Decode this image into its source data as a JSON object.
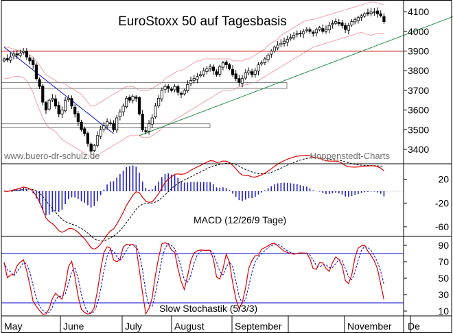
{
  "chart_data": {
    "type": "candlestick",
    "title": "EuroStoxx 50 auf Tagesbasis",
    "source_left": "www.buero-dr-schulz.de",
    "source_right": "Hoppenstedt-Charts",
    "colors": {
      "candle": "#000000",
      "bollinger": "#f0a0a8",
      "resistance": "#cc0000",
      "uptrend": "#1a8a40",
      "downtrend": "#1010cc",
      "support_box": "#808080",
      "macd_line": "#dd0000",
      "signal_line": "#000000",
      "histogram": "#2020c0",
      "stoch_k": "#dd0000",
      "stoch_d": "#0000cc",
      "stoch_levels": "#0000cc"
    },
    "months": [
      "May",
      "June",
      "July",
      "August",
      "September",
      "November",
      "De"
    ],
    "price_panel": {
      "ylim": [
        3330,
        4160
      ],
      "yticks": [
        "3400",
        "3500",
        "3600",
        "3700",
        "3800",
        "3900",
        "4000",
        "4100"
      ],
      "resistance_level": 3900,
      "support_zones": [
        [
          3710,
          3740
        ],
        [
          3510,
          3530
        ]
      ],
      "down_trendline": [
        [
          0,
          3920
        ],
        [
          34,
          3480
        ]
      ],
      "up_trendline": [
        [
          42,
          3470
        ],
        [
          141,
          4085
        ]
      ],
      "close": [
        3860,
        3855,
        3870,
        3885,
        3880,
        3890,
        3900,
        3870,
        3850,
        3830,
        3760,
        3720,
        3640,
        3600,
        3650,
        3660,
        3620,
        3580,
        3600,
        3650,
        3660,
        3620,
        3580,
        3540,
        3500,
        3480,
        3430,
        3390,
        3420,
        3470,
        3500,
        3520,
        3540,
        3530,
        3500,
        3560,
        3590,
        3620,
        3660,
        3650,
        3670,
        3660,
        3580,
        3500,
        3490,
        3530,
        3560,
        3620,
        3660,
        3700,
        3720,
        3710,
        3700,
        3720,
        3690,
        3680,
        3700,
        3730,
        3750,
        3760,
        3770,
        3780,
        3800,
        3810,
        3820,
        3800,
        3780,
        3820,
        3840,
        3830,
        3810,
        3780,
        3760,
        3740,
        3760,
        3790,
        3800,
        3780,
        3800,
        3830,
        3840,
        3860,
        3880,
        3900,
        3920,
        3930,
        3940,
        3950,
        3960,
        3970,
        3980,
        3990,
        3990,
        4000,
        4010,
        4000,
        3990,
        4010,
        4020,
        4000,
        4010,
        4030,
        4040,
        4050,
        4040,
        4030,
        4010,
        4030,
        4050,
        4060,
        4070,
        4080,
        4090,
        4090,
        4100,
        4100,
        4090,
        4080,
        4050
      ],
      "upper_band": [
        3920,
        3920,
        3915,
        3910,
        3905,
        3900,
        3895,
        3890,
        3880,
        3870,
        3850,
        3830,
        3800,
        3780,
        3770,
        3760,
        3750,
        3740,
        3740,
        3730,
        3720,
        3710,
        3700,
        3690,
        3680,
        3660,
        3640,
        3620,
        3620,
        3630,
        3640,
        3650,
        3660,
        3670,
        3680,
        3690,
        3700,
        3710,
        3720,
        3720,
        3720,
        3710,
        3700,
        3700,
        3700,
        3700,
        3710,
        3720,
        3730,
        3740,
        3760,
        3770,
        3780,
        3790,
        3800,
        3800,
        3810,
        3820,
        3830,
        3840,
        3850,
        3850,
        3860,
        3860,
        3860,
        3860,
        3860,
        3860,
        3860,
        3860,
        3860,
        3850,
        3850,
        3850,
        3850,
        3860,
        3860,
        3870,
        3880,
        3890,
        3900,
        3910,
        3930,
        3940,
        3950,
        3960,
        3980,
        3990,
        4000,
        4010,
        4020,
        4030,
        4040,
        4050,
        4055,
        4060,
        4060,
        4065,
        4070,
        4075,
        4080,
        4085,
        4090,
        4095,
        4100,
        4105,
        4110,
        4115,
        4120,
        4125,
        4130,
        4135,
        4140,
        4145,
        4150,
        4150,
        4145,
        4140,
        4135
      ],
      "lower_band": [
        3760,
        3760,
        3765,
        3770,
        3770,
        3770,
        3765,
        3750,
        3720,
        3690,
        3640,
        3600,
        3560,
        3530,
        3510,
        3500,
        3490,
        3470,
        3450,
        3440,
        3430,
        3420,
        3410,
        3400,
        3390,
        3380,
        3370,
        3360,
        3360,
        3370,
        3380,
        3390,
        3400,
        3410,
        3420,
        3430,
        3440,
        3450,
        3460,
        3470,
        3470,
        3470,
        3470,
        3460,
        3460,
        3460,
        3470,
        3480,
        3490,
        3510,
        3520,
        3530,
        3540,
        3550,
        3560,
        3570,
        3580,
        3590,
        3600,
        3610,
        3620,
        3630,
        3640,
        3650,
        3660,
        3670,
        3680,
        3690,
        3700,
        3700,
        3700,
        3700,
        3710,
        3720,
        3720,
        3730,
        3730,
        3740,
        3740,
        3750,
        3760,
        3770,
        3780,
        3790,
        3800,
        3810,
        3820,
        3830,
        3840,
        3850,
        3860,
        3870,
        3880,
        3890,
        3900,
        3910,
        3920,
        3925,
        3930,
        3935,
        3940,
        3945,
        3950,
        3955,
        3960,
        3965,
        3970,
        3975,
        3980,
        3985,
        3990,
        3995,
        3990,
        3985,
        3980,
        3985,
        3990,
        3990,
        3990
      ]
    },
    "macd_panel": {
      "label": "MACD (12/26/9 Tage)",
      "ylim": [
        -75,
        45
      ],
      "yticks": [
        "20",
        "-20",
        "-60"
      ]
    },
    "stoch_panel": {
      "label": "Slow Stochastik (5/3/3)",
      "ylim": [
        5,
        100
      ],
      "yticks": [
        "90",
        "70",
        "50",
        "30",
        "10"
      ],
      "lines": [
        80,
        20
      ]
    }
  }
}
